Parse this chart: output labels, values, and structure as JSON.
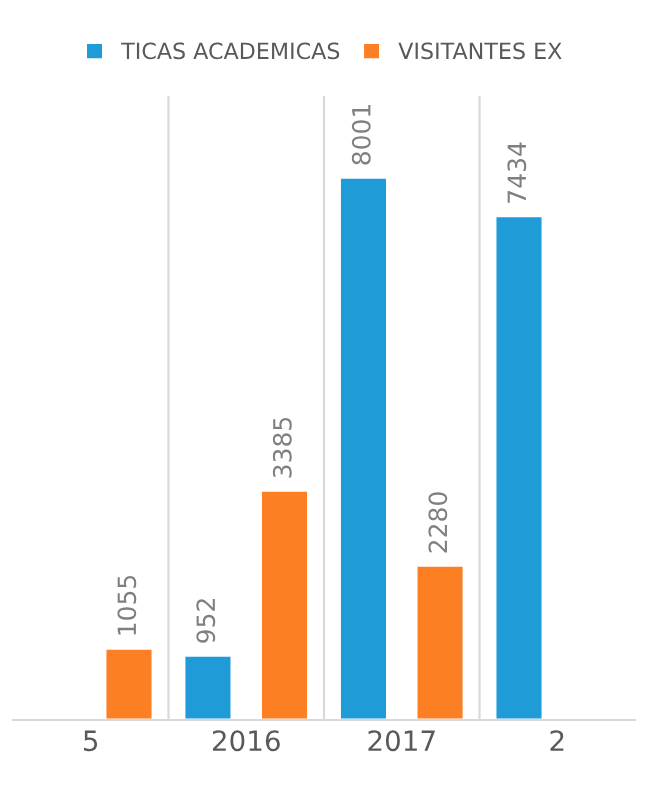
{
  "chart_data": {
    "type": "bar",
    "categories": [
      "5",
      "2016",
      "2017",
      "2"
    ],
    "series": [
      {
        "name": "TICAS ACADEMICAS",
        "color": "#1f9bd7",
        "values": [
          null,
          952,
          8001,
          7434
        ]
      },
      {
        "name": "VISITANTES EX",
        "color": "#fd7f23",
        "values": [
          1055,
          3385,
          2280,
          null
        ]
      }
    ],
    "data_labels": true,
    "grid": "x",
    "legend": "top",
    "tick_labels": "x"
  }
}
